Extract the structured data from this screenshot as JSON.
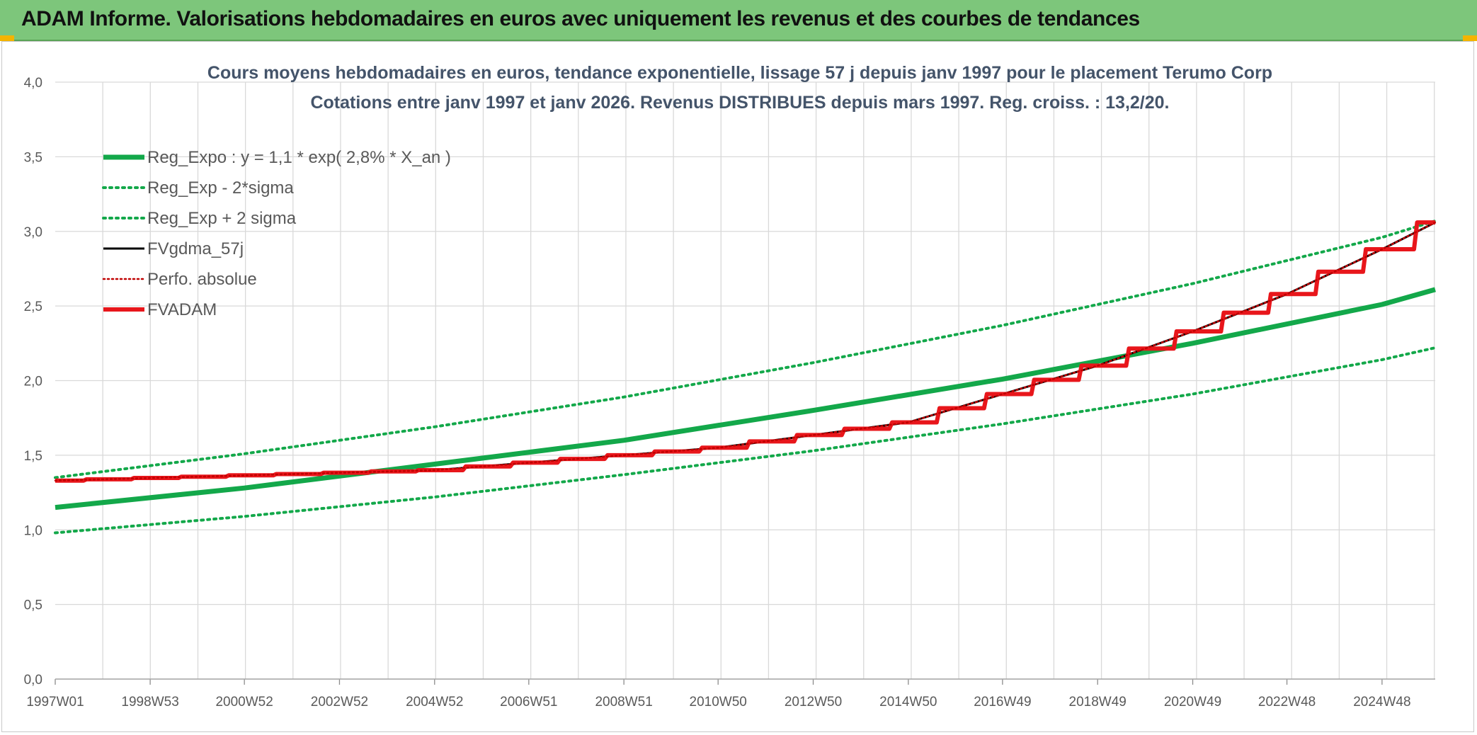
{
  "header": {
    "banner_title": "ADAM Informe. Valorisations hebdomadaires en euros avec uniquement les revenus et des courbes de tendances"
  },
  "colors": {
    "banner": "#7dc67b",
    "green": "#13a84a",
    "red": "#e8161b",
    "black": "#000000",
    "darkred": "#c00000",
    "grid": "#d9d9d9"
  },
  "chart_data": {
    "type": "line",
    "title": "Cours moyens hebdomadaires en euros, tendance exponentielle, lissage 57 j depuis janv 1997 pour le placement Terumo Corp",
    "subtitle": "Cotations entre janv 1997 et janv 2026. Revenus DISTRIBUES depuis mars 1997. Reg. croiss. : 13,2/20.",
    "ylim": [
      0,
      4.0
    ],
    "y_ticks": [
      "0,0",
      "0,5",
      "1,0",
      "1,5",
      "2,0",
      "2,5",
      "3,0",
      "3,5",
      "4,0"
    ],
    "xlim": [
      "1997W01",
      "2026W02"
    ],
    "x_ticks": [
      "1997W01",
      "1998W53",
      "2000W52",
      "2002W52",
      "2004W52",
      "2006W51",
      "2008W51",
      "2010W50",
      "2012W50",
      "2014W50",
      "2016W49",
      "2018W49",
      "2020W49",
      "2022W48",
      "2024W48"
    ],
    "grid": true,
    "legend_position": "top-left",
    "series": [
      {
        "name": "Reg_Expo : y = 1,1 * exp( 2,8% *  X_an )",
        "style": "solid-thick",
        "color": "#13a84a",
        "x": [
          "1997W01",
          "2000W52",
          "2004W52",
          "2008W51",
          "2012W50",
          "2016W49",
          "2020W49",
          "2024W48",
          "2026W02"
        ],
        "y": [
          1.15,
          1.28,
          1.44,
          1.6,
          1.8,
          2.01,
          2.25,
          2.51,
          2.61
        ]
      },
      {
        "name": "Reg_Exp - 2*sigma",
        "style": "dotted",
        "color": "#13a84a",
        "x": [
          "1997W01",
          "2000W52",
          "2004W52",
          "2008W51",
          "2012W50",
          "2016W49",
          "2020W49",
          "2024W48",
          "2026W02"
        ],
        "y": [
          0.98,
          1.09,
          1.22,
          1.37,
          1.53,
          1.71,
          1.91,
          2.14,
          2.22
        ]
      },
      {
        "name": "Reg_Exp + 2 sigma",
        "style": "dotted",
        "color": "#13a84a",
        "x": [
          "1997W01",
          "2000W52",
          "2004W52",
          "2008W51",
          "2012W50",
          "2016W49",
          "2020W49",
          "2024W48",
          "2026W02"
        ],
        "y": [
          1.35,
          1.51,
          1.69,
          1.89,
          2.12,
          2.37,
          2.65,
          2.96,
          3.07
        ]
      },
      {
        "name": "FVgdma_57j",
        "style": "solid",
        "color": "#000000",
        "x": [
          "1997W01",
          "2004W52",
          "2010W50",
          "2014W50",
          "2018W49",
          "2020W49",
          "2022W48",
          "2024W48",
          "2026W02"
        ],
        "y": [
          1.33,
          1.4,
          1.55,
          1.72,
          2.1,
          2.33,
          2.58,
          2.88,
          3.06
        ]
      },
      {
        "name": "Perfo. absolue",
        "style": "dotted-thin",
        "color": "#c00000",
        "x": [
          "1997W01",
          "2004W52",
          "2010W50",
          "2014W50",
          "2018W49",
          "2020W49",
          "2022W48",
          "2024W48",
          "2026W02"
        ],
        "y": [
          1.33,
          1.4,
          1.55,
          1.72,
          2.1,
          2.33,
          2.58,
          2.88,
          3.06
        ]
      },
      {
        "name": "FVADAM",
        "style": "step-thick",
        "color": "#e8161b",
        "x": [
          "1997W01",
          "2004W52",
          "2010W50",
          "2014W50",
          "2018W49",
          "2020W49",
          "2022W48",
          "2024W48",
          "2026W02"
        ],
        "y": [
          1.33,
          1.4,
          1.55,
          1.72,
          2.1,
          2.33,
          2.58,
          2.88,
          3.06
        ]
      }
    ]
  }
}
